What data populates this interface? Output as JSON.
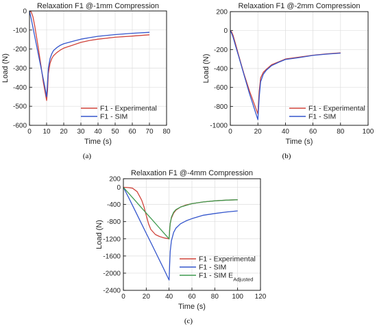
{
  "chart_data": [
    {
      "type": "line",
      "panel_caption": "(a)",
      "title": "Relaxation F1 @-1mm Compression",
      "xlabel": "Time (s)",
      "ylabel": "Load (N)",
      "xlim": [
        0,
        80
      ],
      "ylim": [
        -600,
        0
      ],
      "xticks": [
        0,
        10,
        20,
        30,
        40,
        50,
        60,
        70,
        80
      ],
      "yticks": [
        0,
        -100,
        -200,
        -300,
        -400,
        -500,
        -600
      ],
      "grid": true,
      "legend": "bottom-right",
      "series": [
        {
          "name": "F1 - Experimental",
          "color": "#d0433a",
          "x": [
            0,
            1,
            2,
            3,
            4,
            5,
            6,
            7,
            8,
            9,
            10,
            10.5,
            11,
            12,
            13,
            14,
            16,
            18,
            20,
            25,
            30,
            35,
            40,
            50,
            60,
            70
          ],
          "y": [
            0,
            -5,
            -30,
            -75,
            -130,
            -185,
            -245,
            -305,
            -370,
            -420,
            -470,
            -420,
            -330,
            -275,
            -250,
            -235,
            -218,
            -205,
            -195,
            -180,
            -165,
            -155,
            -148,
            -138,
            -132,
            -125
          ]
        },
        {
          "name": "F1 - SIM",
          "color": "#3355cc",
          "x": [
            0,
            1,
            2,
            3,
            4,
            5,
            6,
            7,
            8,
            9,
            10,
            10.5,
            11,
            12,
            13,
            14,
            16,
            18,
            20,
            25,
            30,
            35,
            40,
            50,
            60,
            70
          ],
          "y": [
            0,
            -40,
            -85,
            -130,
            -175,
            -220,
            -265,
            -310,
            -355,
            -400,
            -450,
            -380,
            -300,
            -250,
            -225,
            -208,
            -192,
            -180,
            -172,
            -160,
            -148,
            -140,
            -133,
            -124,
            -117,
            -112
          ]
        }
      ]
    },
    {
      "type": "line",
      "panel_caption": "(b)",
      "title": "Relaxation F1 @-2mm Compression",
      "xlabel": "Time (s)",
      "ylabel": "Load (N)",
      "xlim": [
        0,
        100
      ],
      "ylim": [
        -1000,
        200
      ],
      "xticks": [
        0,
        20,
        40,
        60,
        80,
        100
      ],
      "yticks": [
        200,
        0,
        -200,
        -400,
        -600,
        -800,
        -1000
      ],
      "grid": true,
      "legend": "bottom-right",
      "series": [
        {
          "name": "F1 - Experimental",
          "color": "#d0433a",
          "x": [
            0,
            1,
            2,
            4,
            6,
            8,
            10,
            12,
            14,
            16,
            18,
            20,
            21,
            22,
            24,
            26,
            30,
            35,
            40,
            50,
            60,
            70,
            80
          ],
          "y": [
            0,
            -15,
            -50,
            -150,
            -260,
            -360,
            -460,
            -550,
            -640,
            -720,
            -800,
            -880,
            -640,
            -500,
            -440,
            -410,
            -360,
            -330,
            -300,
            -280,
            -260,
            -245,
            -235
          ]
        },
        {
          "name": "F1 - SIM",
          "color": "#3355cc",
          "x": [
            0,
            1,
            2,
            4,
            6,
            8,
            10,
            12,
            14,
            16,
            18,
            20,
            21,
            22,
            24,
            26,
            30,
            35,
            40,
            50,
            60,
            70,
            80
          ],
          "y": [
            0,
            -30,
            -70,
            -170,
            -270,
            -370,
            -470,
            -570,
            -670,
            -760,
            -850,
            -940,
            -700,
            -540,
            -460,
            -420,
            -370,
            -335,
            -305,
            -285,
            -262,
            -248,
            -238
          ]
        }
      ]
    },
    {
      "type": "line",
      "panel_caption": "(c)",
      "title": "Relaxation F1 @-4mm Compression",
      "xlabel": "Time (s)",
      "ylabel": "Load (N)",
      "xlim": [
        0,
        120
      ],
      "ylim": [
        -2400,
        200
      ],
      "xticks": [
        0,
        20,
        40,
        60,
        80,
        100,
        120
      ],
      "yticks": [
        200,
        0,
        -400,
        -800,
        -1200,
        -1600,
        -2000,
        -2400
      ],
      "grid": true,
      "legend": "bottom-right",
      "series": [
        {
          "name": "F1 - Experimental",
          "color": "#d0433a",
          "x": [
            0,
            4,
            8,
            12,
            16,
            18,
            20,
            22,
            24,
            28,
            32,
            36,
            40,
            40.5,
            41,
            42,
            44,
            46,
            50,
            55,
            60,
            70,
            80,
            90,
            100
          ],
          "y": [
            0,
            -5,
            -20,
            -100,
            -300,
            -450,
            -650,
            -850,
            -980,
            -1100,
            -1150,
            -1180,
            -1200,
            -1000,
            -850,
            -720,
            -600,
            -530,
            -460,
            -410,
            -380,
            -340,
            -315,
            -300,
            -290
          ]
        },
        {
          "name": "F1 - SIM",
          "color": "#3355cc",
          "x": [
            0,
            5,
            10,
            15,
            20,
            25,
            30,
            35,
            40,
            40.5,
            41,
            42,
            44,
            46,
            50,
            55,
            60,
            70,
            80,
            90,
            100
          ],
          "y": [
            0,
            -260,
            -530,
            -800,
            -1070,
            -1340,
            -1610,
            -1880,
            -2160,
            -1800,
            -1500,
            -1250,
            -1050,
            -950,
            -850,
            -780,
            -730,
            -650,
            -610,
            -575,
            -550
          ]
        },
        {
          "name": "F1 - SIM E",
          "name_sub": "Adjusted",
          "color": "#3f9a4f",
          "x": [
            0,
            5,
            10,
            15,
            20,
            25,
            30,
            35,
            40,
            40.5,
            41,
            42,
            44,
            46,
            50,
            55,
            60,
            70,
            80,
            90,
            100
          ],
          "y": [
            0,
            -150,
            -300,
            -450,
            -600,
            -750,
            -900,
            -1050,
            -1200,
            -1000,
            -850,
            -700,
            -580,
            -520,
            -460,
            -420,
            -380,
            -340,
            -315,
            -300,
            -290
          ]
        }
      ]
    }
  ]
}
